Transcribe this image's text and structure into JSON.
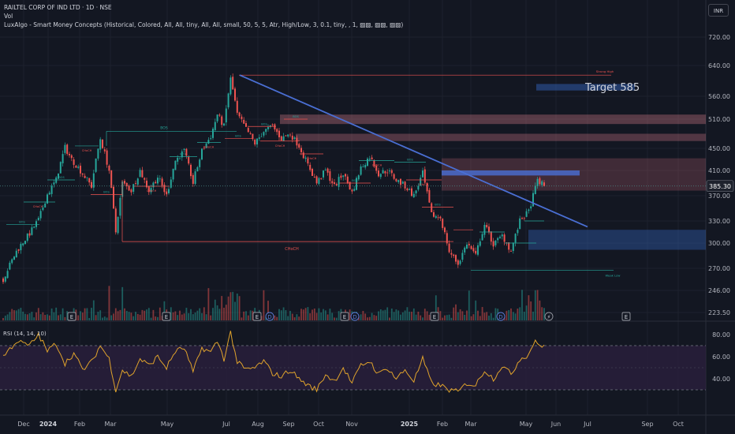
{
  "header": {
    "symbol_line": "RAILTEL CORP OF IND LTD · 1D · NSE",
    "vol_label": "Vol",
    "indicator_line": "LuxAlgo - Smart Money Concepts (Historical, Colored, All, All, tiny, All, All, small, 50, 5, 5, Atr, High/Low, 3, 0.1, tiny, , 1, ▨▨, ▨▨, ▨▨)",
    "currency": "INR"
  },
  "colors": {
    "background": "#131722",
    "grid": "#1e222d",
    "up": "#26a69a",
    "down": "#ef5350",
    "trendline": "#4a6fd4",
    "rsi_line": "#e0a32c",
    "rsi_band": "#2a1f3d",
    "axis_text": "#b2b5be",
    "last_price_bg": "#1e222d"
  },
  "chart_data": [
    {
      "type": "candlestick",
      "price_axis": {
        "ticks": [
          720.0,
          640.0,
          560.0,
          510.0,
          450.0,
          410.0,
          370.0,
          330.0,
          300.0,
          270.0,
          246.0,
          223.5
        ],
        "range": [
          215,
          790
        ]
      },
      "last_price": 385.3,
      "time_axis_labels": [
        "Dec",
        "2024",
        "Feb",
        "Mar",
        "May",
        "Jul",
        "Aug",
        "Sep",
        "Oct",
        "Nov",
        "2025",
        "Feb",
        "Mar",
        "May",
        "Jun",
        "Jul",
        "Sep",
        "Oct"
      ],
      "price_path": [
        {
          "i": 0,
          "p": 258
        },
        {
          "i": 6,
          "p": 290
        },
        {
          "i": 12,
          "p": 313
        },
        {
          "i": 16,
          "p": 332
        },
        {
          "i": 20,
          "p": 372
        },
        {
          "i": 24,
          "p": 395
        },
        {
          "i": 28,
          "p": 452
        },
        {
          "i": 31,
          "p": 430
        },
        {
          "i": 35,
          "p": 410
        },
        {
          "i": 40,
          "p": 385
        },
        {
          "i": 44,
          "p": 470
        },
        {
          "i": 48,
          "p": 410
        },
        {
          "i": 51,
          "p": 315
        },
        {
          "i": 54,
          "p": 390
        },
        {
          "i": 58,
          "p": 378
        },
        {
          "i": 62,
          "p": 410
        },
        {
          "i": 66,
          "p": 378
        },
        {
          "i": 70,
          "p": 400
        },
        {
          "i": 74,
          "p": 370
        },
        {
          "i": 78,
          "p": 428
        },
        {
          "i": 82,
          "p": 445
        },
        {
          "i": 86,
          "p": 390
        },
        {
          "i": 90,
          "p": 445
        },
        {
          "i": 94,
          "p": 475
        },
        {
          "i": 97,
          "p": 520
        },
        {
          "i": 100,
          "p": 495
        },
        {
          "i": 103,
          "p": 605
        },
        {
          "i": 106,
          "p": 520
        },
        {
          "i": 110,
          "p": 490
        },
        {
          "i": 114,
          "p": 460
        },
        {
          "i": 118,
          "p": 485
        },
        {
          "i": 122,
          "p": 495
        },
        {
          "i": 126,
          "p": 470
        },
        {
          "i": 130,
          "p": 480
        },
        {
          "i": 134,
          "p": 455
        },
        {
          "i": 138,
          "p": 420
        },
        {
          "i": 142,
          "p": 390
        },
        {
          "i": 146,
          "p": 410
        },
        {
          "i": 150,
          "p": 385
        },
        {
          "i": 154,
          "p": 405
        },
        {
          "i": 158,
          "p": 375
        },
        {
          "i": 162,
          "p": 415
        },
        {
          "i": 166,
          "p": 435
        },
        {
          "i": 170,
          "p": 405
        },
        {
          "i": 174,
          "p": 410
        },
        {
          "i": 178,
          "p": 395
        },
        {
          "i": 182,
          "p": 385
        },
        {
          "i": 186,
          "p": 370
        },
        {
          "i": 190,
          "p": 405
        },
        {
          "i": 194,
          "p": 340
        },
        {
          "i": 198,
          "p": 335
        },
        {
          "i": 202,
          "p": 290
        },
        {
          "i": 206,
          "p": 275
        },
        {
          "i": 210,
          "p": 300
        },
        {
          "i": 214,
          "p": 285
        },
        {
          "i": 218,
          "p": 325
        },
        {
          "i": 222,
          "p": 298
        },
        {
          "i": 226,
          "p": 310
        },
        {
          "i": 230,
          "p": 290
        },
        {
          "i": 234,
          "p": 330
        },
        {
          "i": 238,
          "p": 345
        },
        {
          "i": 242,
          "p": 395
        },
        {
          "i": 245,
          "p": 385
        }
      ],
      "rsi": {
        "label": "RSI (14, 14, 10)",
        "ticks": [
          80.0,
          60.0,
          40.0
        ],
        "upper_band": 70,
        "lower_band": 30,
        "range": [
          20,
          90
        ],
        "path": [
          {
            "i": 0,
            "v": 60
          },
          {
            "i": 6,
            "v": 74
          },
          {
            "i": 12,
            "v": 70
          },
          {
            "i": 16,
            "v": 80
          },
          {
            "i": 20,
            "v": 65
          },
          {
            "i": 24,
            "v": 72
          },
          {
            "i": 28,
            "v": 54
          },
          {
            "i": 32,
            "v": 63
          },
          {
            "i": 36,
            "v": 48
          },
          {
            "i": 40,
            "v": 55
          },
          {
            "i": 44,
            "v": 70
          },
          {
            "i": 48,
            "v": 58
          },
          {
            "i": 51,
            "v": 30
          },
          {
            "i": 54,
            "v": 48
          },
          {
            "i": 58,
            "v": 42
          },
          {
            "i": 62,
            "v": 58
          },
          {
            "i": 66,
            "v": 52
          },
          {
            "i": 70,
            "v": 60
          },
          {
            "i": 74,
            "v": 50
          },
          {
            "i": 78,
            "v": 65
          },
          {
            "i": 82,
            "v": 68
          },
          {
            "i": 86,
            "v": 46
          },
          {
            "i": 90,
            "v": 68
          },
          {
            "i": 94,
            "v": 64
          },
          {
            "i": 97,
            "v": 74
          },
          {
            "i": 100,
            "v": 58
          },
          {
            "i": 103,
            "v": 82
          },
          {
            "i": 106,
            "v": 55
          },
          {
            "i": 110,
            "v": 48
          },
          {
            "i": 114,
            "v": 50
          },
          {
            "i": 118,
            "v": 56
          },
          {
            "i": 122,
            "v": 45
          },
          {
            "i": 126,
            "v": 42
          },
          {
            "i": 130,
            "v": 48
          },
          {
            "i": 134,
            "v": 40
          },
          {
            "i": 138,
            "v": 34
          },
          {
            "i": 142,
            "v": 30
          },
          {
            "i": 146,
            "v": 44
          },
          {
            "i": 150,
            "v": 38
          },
          {
            "i": 154,
            "v": 50
          },
          {
            "i": 158,
            "v": 36
          },
          {
            "i": 162,
            "v": 52
          },
          {
            "i": 166,
            "v": 56
          },
          {
            "i": 170,
            "v": 44
          },
          {
            "i": 174,
            "v": 50
          },
          {
            "i": 178,
            "v": 40
          },
          {
            "i": 182,
            "v": 48
          },
          {
            "i": 186,
            "v": 38
          },
          {
            "i": 190,
            "v": 58
          },
          {
            "i": 194,
            "v": 36
          },
          {
            "i": 198,
            "v": 34
          },
          {
            "i": 202,
            "v": 30
          },
          {
            "i": 206,
            "v": 28
          },
          {
            "i": 210,
            "v": 36
          },
          {
            "i": 214,
            "v": 34
          },
          {
            "i": 218,
            "v": 48
          },
          {
            "i": 222,
            "v": 40
          },
          {
            "i": 226,
            "v": 52
          },
          {
            "i": 230,
            "v": 44
          },
          {
            "i": 234,
            "v": 58
          },
          {
            "i": 238,
            "v": 62
          },
          {
            "i": 241,
            "v": 76
          },
          {
            "i": 243,
            "v": 68
          },
          {
            "i": 245,
            "v": 70
          }
        ]
      },
      "annotations": {
        "target_label": "Target 585",
        "target_price": 585,
        "choch_label": "CHoCH",
        "bos_label": "BOS",
        "strong_high_label": "Strong High",
        "weak_low_label": "Weak Low",
        "small_labels": [
          "BOS",
          "CHoCH",
          "BOS",
          "CHoCH",
          "BOS",
          "CHoCH",
          "BOS",
          "CHoCH",
          "BOS",
          "BOS",
          "CHoCH",
          "BOS",
          "CHoCH",
          "BOS",
          "CHoCH",
          "BOS",
          "CHoCH",
          "BOS"
        ],
        "event_markers": [
          "E",
          "E",
          "E",
          "D",
          "E",
          "D",
          "E",
          "D",
          "⚡",
          "E"
        ]
      }
    }
  ]
}
